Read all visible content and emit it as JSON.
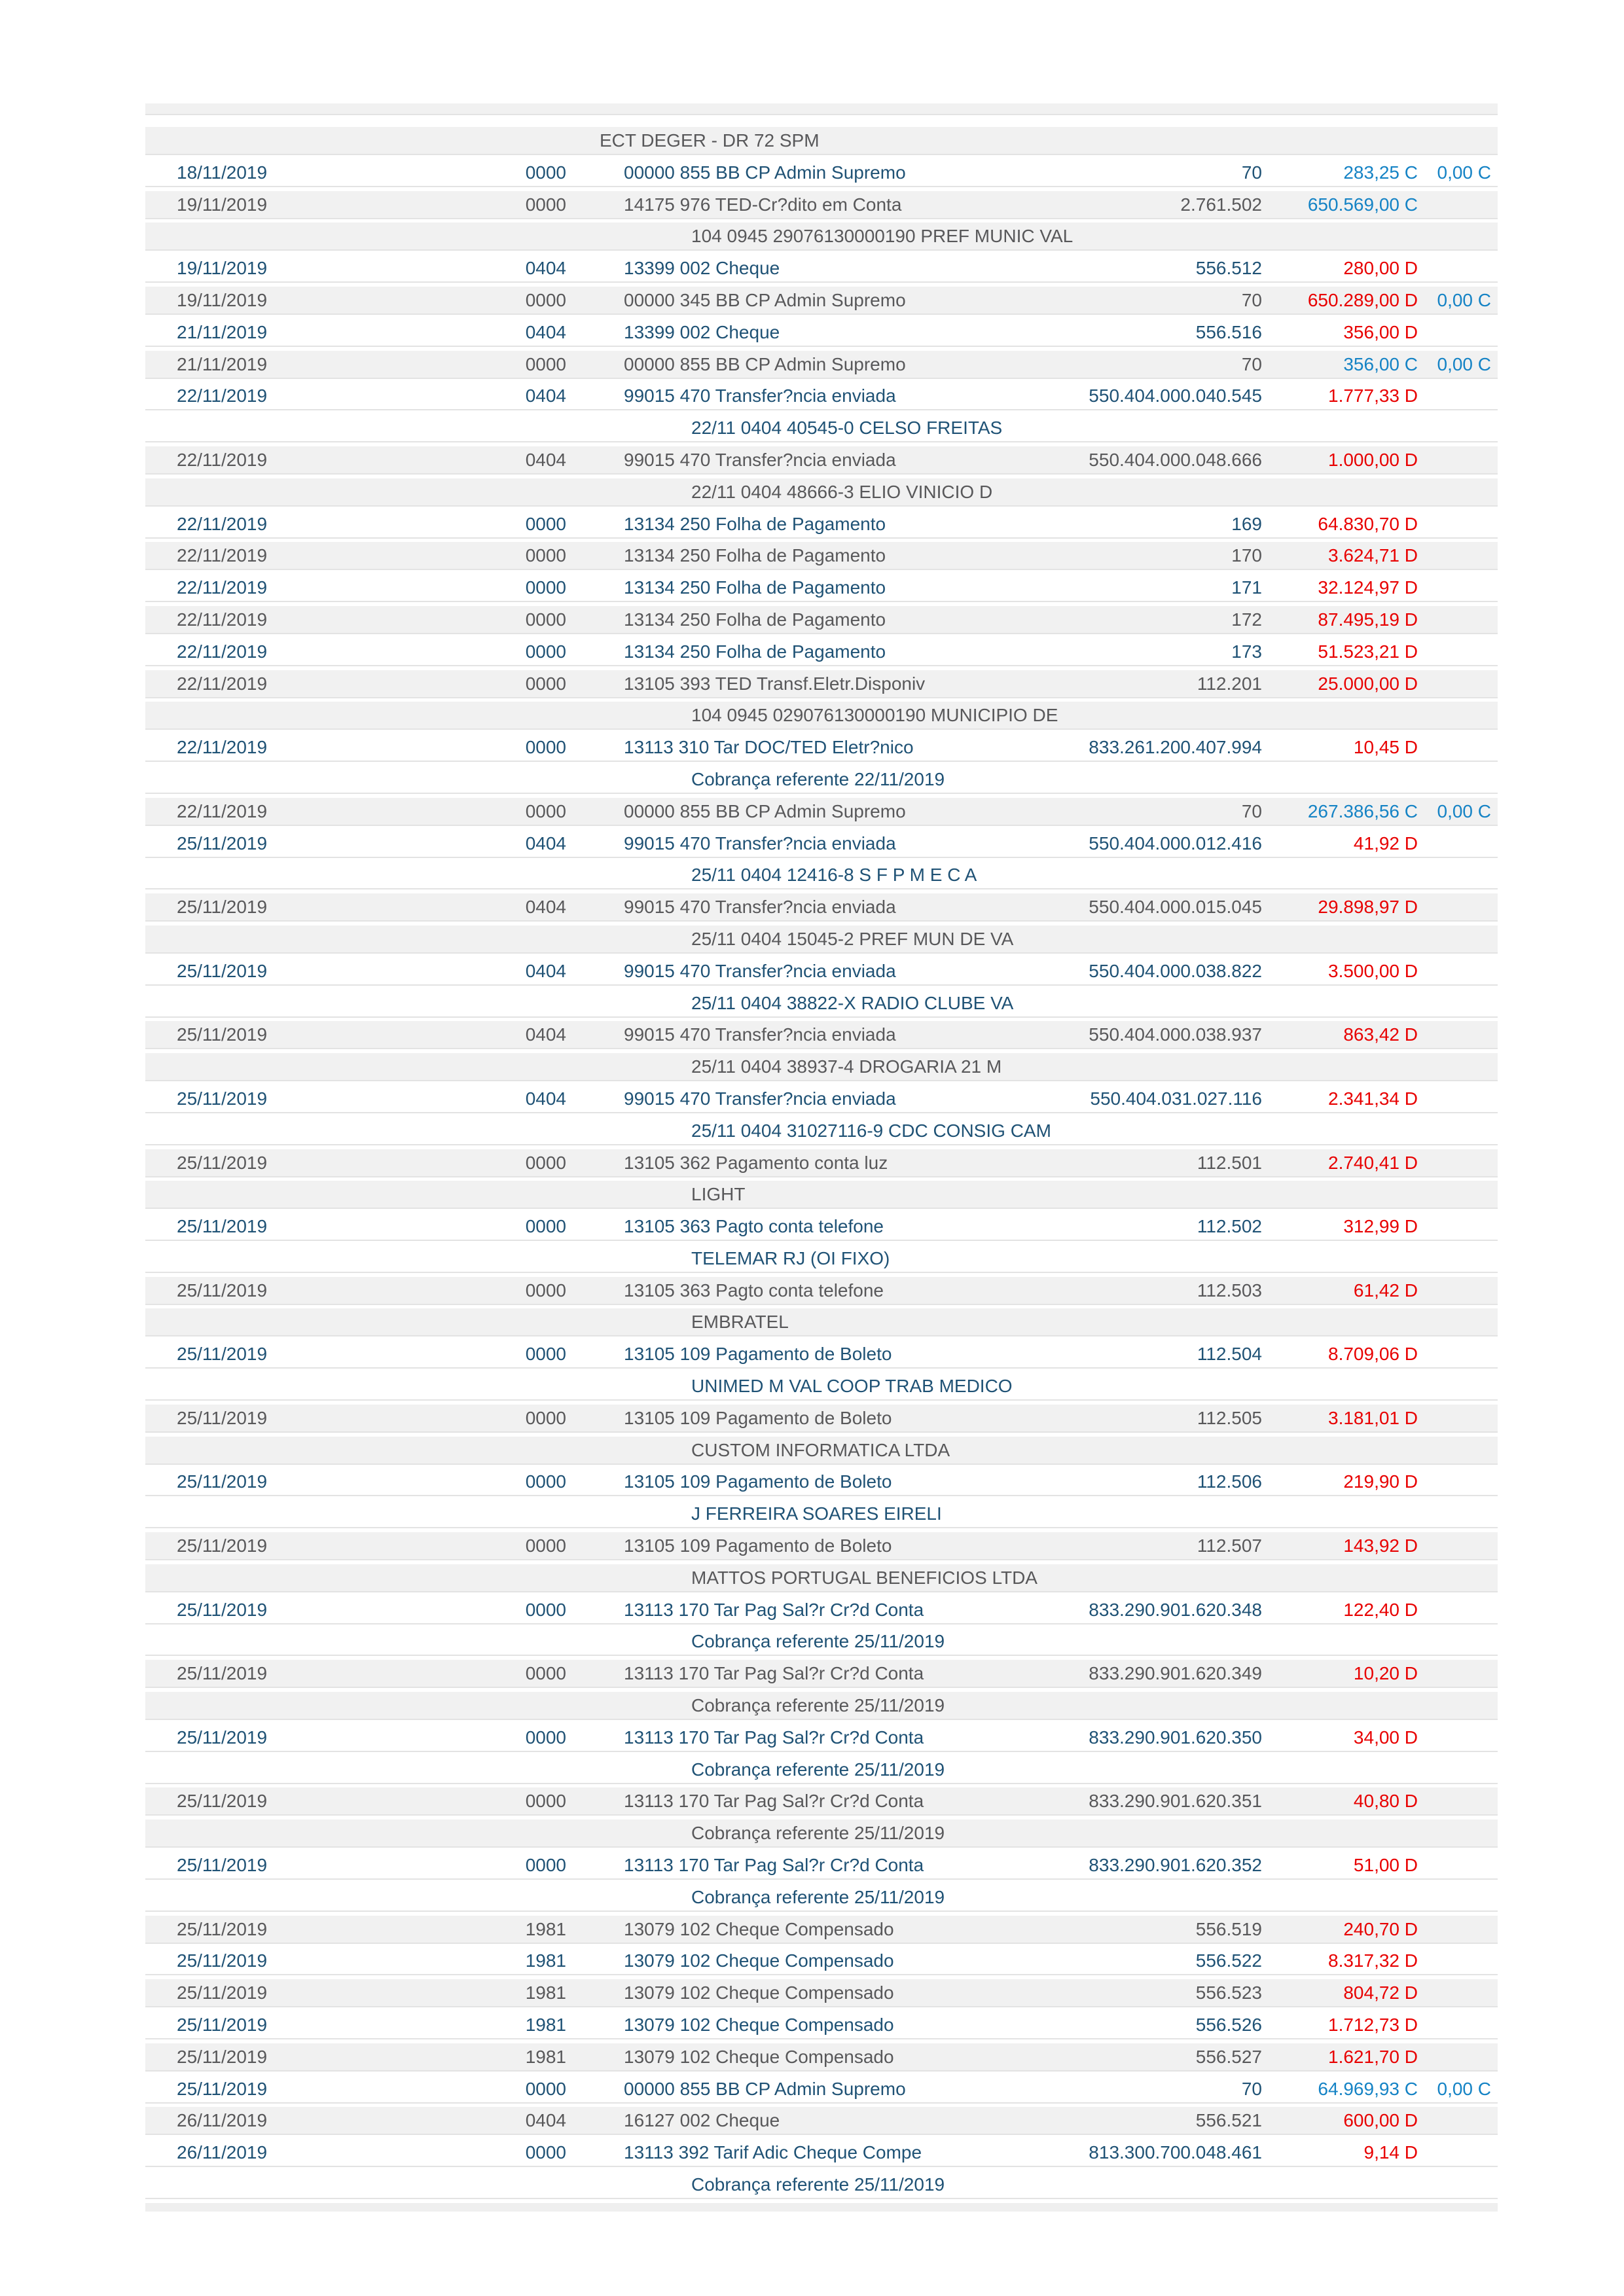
{
  "document": {
    "kind": "bank-statement-transactions-page",
    "colors": {
      "row_text_odd": "#1F5275",
      "row_text_even": "#58585A",
      "row_bg_odd": "#FFFFFF",
      "row_bg_even": "#F1F1F1",
      "debit_amount": "#E80000",
      "credit_amount": "#1583C5",
      "separator": "#E3E3E3"
    }
  },
  "table": {
    "rows": [
      {
        "bg": "g",
        "cont": "ECT DEGER - DR 72 SPM",
        "sm": true
      },
      {
        "bg": "w",
        "date": "18/11/2019",
        "branch": "0000",
        "desc": "00000 855 BB CP Admin Supremo",
        "doc": "70",
        "value": "283,25 C",
        "vc": "credit",
        "value2": "0,00 C"
      },
      {
        "bg": "g",
        "date": "19/11/2019",
        "branch": "0000",
        "desc": "14175 976 TED-Cr?dito em Conta",
        "doc": "2.761.502",
        "value": "650.569,00 C",
        "vc": "credit"
      },
      {
        "bg": "g",
        "cont": "104 0945 29076130000190 PREF MUNIC VAL"
      },
      {
        "bg": "w",
        "date": "19/11/2019",
        "branch": "0404",
        "desc": "13399 002 Cheque",
        "doc": "556.512",
        "value": "280,00 D",
        "vc": "debit"
      },
      {
        "bg": "g",
        "date": "19/11/2019",
        "branch": "0000",
        "desc": "00000 345 BB CP Admin Supremo",
        "doc": "70",
        "value": "650.289,00 D",
        "vc": "debit",
        "value2": "0,00 C"
      },
      {
        "bg": "w",
        "date": "21/11/2019",
        "branch": "0404",
        "desc": "13399 002 Cheque",
        "doc": "556.516",
        "value": "356,00 D",
        "vc": "debit"
      },
      {
        "bg": "g",
        "date": "21/11/2019",
        "branch": "0000",
        "desc": "00000 855 BB CP Admin Supremo",
        "doc": "70",
        "value": "356,00 C",
        "vc": "credit",
        "value2": "0,00 C"
      },
      {
        "bg": "w",
        "date": "22/11/2019",
        "branch": "0404",
        "desc": "99015 470 Transfer?ncia enviada",
        "doc": "550.404.000.040.545",
        "value": "1.777,33 D",
        "vc": "debit"
      },
      {
        "bg": "w",
        "cont": "22/11 0404 40545-0 CELSO FREITAS"
      },
      {
        "bg": "g",
        "date": "22/11/2019",
        "branch": "0404",
        "desc": "99015 470 Transfer?ncia enviada",
        "doc": "550.404.000.048.666",
        "value": "1.000,00 D",
        "vc": "debit"
      },
      {
        "bg": "g",
        "cont": "22/11 0404 48666-3 ELIO VINICIO D"
      },
      {
        "bg": "w",
        "date": "22/11/2019",
        "branch": "0000",
        "desc": "13134 250 Folha de Pagamento",
        "doc": "169",
        "value": "64.830,70 D",
        "vc": "debit"
      },
      {
        "bg": "g",
        "date": "22/11/2019",
        "branch": "0000",
        "desc": "13134 250 Folha de Pagamento",
        "doc": "170",
        "value": "3.624,71 D",
        "vc": "debit"
      },
      {
        "bg": "w",
        "date": "22/11/2019",
        "branch": "0000",
        "desc": "13134 250 Folha de Pagamento",
        "doc": "171",
        "value": "32.124,97 D",
        "vc": "debit"
      },
      {
        "bg": "g",
        "date": "22/11/2019",
        "branch": "0000",
        "desc": "13134 250 Folha de Pagamento",
        "doc": "172",
        "value": "87.495,19 D",
        "vc": "debit"
      },
      {
        "bg": "w",
        "date": "22/11/2019",
        "branch": "0000",
        "desc": "13134 250 Folha de Pagamento",
        "doc": "173",
        "value": "51.523,21 D",
        "vc": "debit"
      },
      {
        "bg": "g",
        "date": "22/11/2019",
        "branch": "0000",
        "desc": "13105 393 TED Transf.Eletr.Disponiv",
        "doc": "112.201",
        "value": "25.000,00 D",
        "vc": "debit"
      },
      {
        "bg": "g",
        "cont": "104 0945 029076130000190 MUNICIPIO DE"
      },
      {
        "bg": "w",
        "date": "22/11/2019",
        "branch": "0000",
        "desc": "13113 310 Tar DOC/TED Eletr?nico",
        "doc": "833.261.200.407.994",
        "value": "10,45 D",
        "vc": "debit"
      },
      {
        "bg": "w",
        "cont": "Cobrança referente 22/11/2019"
      },
      {
        "bg": "g",
        "date": "22/11/2019",
        "branch": "0000",
        "desc": "00000 855 BB CP Admin Supremo",
        "doc": "70",
        "value": "267.386,56 C",
        "vc": "credit",
        "value2": "0,00 C"
      },
      {
        "bg": "w",
        "date": "25/11/2019",
        "branch": "0404",
        "desc": "99015 470 Transfer?ncia enviada",
        "doc": "550.404.000.012.416",
        "value": "41,92 D",
        "vc": "debit"
      },
      {
        "bg": "w",
        "cont": "25/11 0404 12416-8 S F P M E C A"
      },
      {
        "bg": "g",
        "date": "25/11/2019",
        "branch": "0404",
        "desc": "99015 470 Transfer?ncia enviada",
        "doc": "550.404.000.015.045",
        "value": "29.898,97 D",
        "vc": "debit"
      },
      {
        "bg": "g",
        "cont": "25/11 0404 15045-2 PREF MUN DE VA"
      },
      {
        "bg": "w",
        "date": "25/11/2019",
        "branch": "0404",
        "desc": "99015 470 Transfer?ncia enviada",
        "doc": "550.404.000.038.822",
        "value": "3.500,00 D",
        "vc": "debit"
      },
      {
        "bg": "w",
        "cont": "25/11 0404 38822-X RADIO CLUBE VA"
      },
      {
        "bg": "g",
        "date": "25/11/2019",
        "branch": "0404",
        "desc": "99015 470 Transfer?ncia enviada",
        "doc": "550.404.000.038.937",
        "value": "863,42 D",
        "vc": "debit"
      },
      {
        "bg": "g",
        "cont": "25/11 0404 38937-4 DROGARIA 21 M"
      },
      {
        "bg": "w",
        "date": "25/11/2019",
        "branch": "0404",
        "desc": "99015 470 Transfer?ncia enviada",
        "doc": "550.404.031.027.116",
        "value": "2.341,34 D",
        "vc": "debit"
      },
      {
        "bg": "w",
        "cont": "25/11 0404 31027116-9 CDC CONSIG CAM"
      },
      {
        "bg": "g",
        "date": "25/11/2019",
        "branch": "0000",
        "desc": "13105 362 Pagamento conta luz",
        "doc": "112.501",
        "value": "2.740,41 D",
        "vc": "debit"
      },
      {
        "bg": "g",
        "cont": "LIGHT"
      },
      {
        "bg": "w",
        "date": "25/11/2019",
        "branch": "0000",
        "desc": "13105 363 Pagto conta telefone",
        "doc": "112.502",
        "value": "312,99 D",
        "vc": "debit"
      },
      {
        "bg": "w",
        "cont": "TELEMAR RJ (OI FIXO)"
      },
      {
        "bg": "g",
        "date": "25/11/2019",
        "branch": "0000",
        "desc": "13105 363 Pagto conta telefone",
        "doc": "112.503",
        "value": "61,42 D",
        "vc": "debit"
      },
      {
        "bg": "g",
        "cont": "EMBRATEL"
      },
      {
        "bg": "w",
        "date": "25/11/2019",
        "branch": "0000",
        "desc": "13105 109 Pagamento de Boleto",
        "doc": "112.504",
        "value": "8.709,06 D",
        "vc": "debit"
      },
      {
        "bg": "w",
        "cont": "UNIMED M VAL COOP TRAB MEDICO"
      },
      {
        "bg": "g",
        "date": "25/11/2019",
        "branch": "0000",
        "desc": "13105 109 Pagamento de Boleto",
        "doc": "112.505",
        "value": "3.181,01 D",
        "vc": "debit"
      },
      {
        "bg": "g",
        "cont": "CUSTOM INFORMATICA LTDA"
      },
      {
        "bg": "w",
        "date": "25/11/2019",
        "branch": "0000",
        "desc": "13105 109 Pagamento de Boleto",
        "doc": "112.506",
        "value": "219,90 D",
        "vc": "debit"
      },
      {
        "bg": "w",
        "cont": "J FERREIRA SOARES EIRELI"
      },
      {
        "bg": "g",
        "date": "25/11/2019",
        "branch": "0000",
        "desc": "13105 109 Pagamento de Boleto",
        "doc": "112.507",
        "value": "143,92 D",
        "vc": "debit"
      },
      {
        "bg": "g",
        "cont": "MATTOS PORTUGAL BENEFICIOS LTDA"
      },
      {
        "bg": "w",
        "date": "25/11/2019",
        "branch": "0000",
        "desc": "13113 170 Tar Pag Sal?r Cr?d Conta",
        "doc": "833.290.901.620.348",
        "value": "122,40 D",
        "vc": "debit"
      },
      {
        "bg": "w",
        "cont": "Cobrança referente 25/11/2019"
      },
      {
        "bg": "g",
        "date": "25/11/2019",
        "branch": "0000",
        "desc": "13113 170 Tar Pag Sal?r Cr?d Conta",
        "doc": "833.290.901.620.349",
        "value": "10,20 D",
        "vc": "debit"
      },
      {
        "bg": "g",
        "cont": "Cobrança referente 25/11/2019"
      },
      {
        "bg": "w",
        "date": "25/11/2019",
        "branch": "0000",
        "desc": "13113 170 Tar Pag Sal?r Cr?d Conta",
        "doc": "833.290.901.620.350",
        "value": "34,00 D",
        "vc": "debit"
      },
      {
        "bg": "w",
        "cont": "Cobrança referente 25/11/2019"
      },
      {
        "bg": "g",
        "date": "25/11/2019",
        "branch": "0000",
        "desc": "13113 170 Tar Pag Sal?r Cr?d Conta",
        "doc": "833.290.901.620.351",
        "value": "40,80 D",
        "vc": "debit"
      },
      {
        "bg": "g",
        "cont": "Cobrança referente 25/11/2019"
      },
      {
        "bg": "w",
        "date": "25/11/2019",
        "branch": "0000",
        "desc": "13113 170 Tar Pag Sal?r Cr?d Conta",
        "doc": "833.290.901.620.352",
        "value": "51,00 D",
        "vc": "debit"
      },
      {
        "bg": "w",
        "cont": "Cobrança referente 25/11/2019"
      },
      {
        "bg": "g",
        "date": "25/11/2019",
        "branch": "1981",
        "desc": "13079 102 Cheque Compensado",
        "doc": "556.519",
        "value": "240,70 D",
        "vc": "debit"
      },
      {
        "bg": "w",
        "date": "25/11/2019",
        "branch": "1981",
        "desc": "13079 102 Cheque Compensado",
        "doc": "556.522",
        "value": "8.317,32 D",
        "vc": "debit"
      },
      {
        "bg": "g",
        "date": "25/11/2019",
        "branch": "1981",
        "desc": "13079 102 Cheque Compensado",
        "doc": "556.523",
        "value": "804,72 D",
        "vc": "debit"
      },
      {
        "bg": "w",
        "date": "25/11/2019",
        "branch": "1981",
        "desc": "13079 102 Cheque Compensado",
        "doc": "556.526",
        "value": "1.712,73 D",
        "vc": "debit"
      },
      {
        "bg": "g",
        "date": "25/11/2019",
        "branch": "1981",
        "desc": "13079 102 Cheque Compensado",
        "doc": "556.527",
        "value": "1.621,70 D",
        "vc": "debit"
      },
      {
        "bg": "w",
        "date": "25/11/2019",
        "branch": "0000",
        "desc": "00000 855 BB CP Admin Supremo",
        "doc": "70",
        "value": "64.969,93 C",
        "vc": "credit",
        "value2": "0,00 C"
      },
      {
        "bg": "g",
        "date": "26/11/2019",
        "branch": "0404",
        "desc": "16127 002 Cheque",
        "doc": "556.521",
        "value": "600,00 D",
        "vc": "debit"
      },
      {
        "bg": "w",
        "date": "26/11/2019",
        "branch": "0000",
        "desc": "13113 392 Tarif Adic Cheque Compe",
        "doc": "813.300.700.048.461",
        "value": "9,14 D",
        "vc": "debit"
      },
      {
        "bg": "w",
        "cont": "Cobrança referente 25/11/2019"
      }
    ]
  }
}
